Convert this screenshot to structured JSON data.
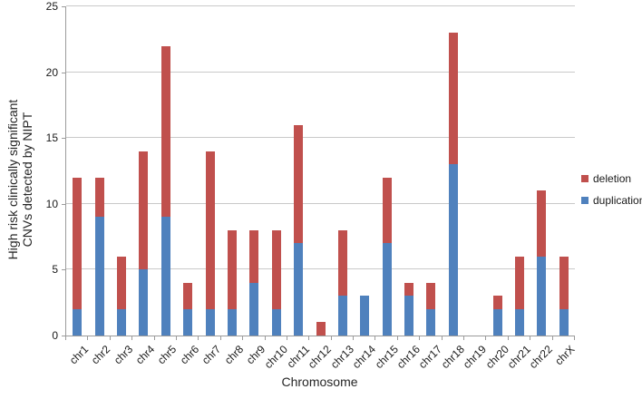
{
  "chart_data": {
    "type": "bar",
    "stacked": true,
    "title": "",
    "xlabel": "Chromosome",
    "ylabel_lines": {
      "line1": "High risk clinically  significant",
      "line2": "CNVs detected by NIPT"
    },
    "ylim": [
      0,
      25
    ],
    "yticks": [
      0,
      5,
      10,
      15,
      20,
      25
    ],
    "grid": true,
    "legend_position": "right",
    "categories": [
      "chr1",
      "chr2",
      "chr3",
      "chr4",
      "chr5",
      "chr6",
      "chr7",
      "chr8",
      "chr9",
      "chr10",
      "chr11",
      "chr12",
      "chr13",
      "chr14",
      "chr15",
      "chr16",
      "chr17",
      "chr18",
      "chr19",
      "chr20",
      "chr21",
      "chr22",
      "chrX"
    ],
    "series": [
      {
        "name": "deletion",
        "color": "#c0504d",
        "values": [
          10,
          3,
          4,
          9,
          13,
          2,
          12,
          6,
          4,
          6,
          9,
          1,
          5,
          0,
          5,
          1,
          2,
          10,
          0,
          1,
          4,
          5,
          4
        ]
      },
      {
        "name": "duplication",
        "color": "#4f81bd",
        "values": [
          2,
          9,
          2,
          5,
          9,
          2,
          2,
          2,
          4,
          2,
          7,
          0,
          3,
          3,
          7,
          3,
          2,
          13,
          0,
          2,
          2,
          6,
          2
        ]
      }
    ],
    "totals": [
      12,
      12,
      6,
      14,
      22,
      4,
      14,
      8,
      8,
      8,
      16,
      1,
      8,
      3,
      12,
      4,
      4,
      23,
      0,
      3,
      6,
      11,
      6
    ],
    "colors": {
      "deletion": "#c0504d",
      "duplication": "#4f81bd",
      "gridline": "#c9c9c9",
      "axis": "#9b9b9b",
      "text": "#1a1a1a"
    }
  }
}
